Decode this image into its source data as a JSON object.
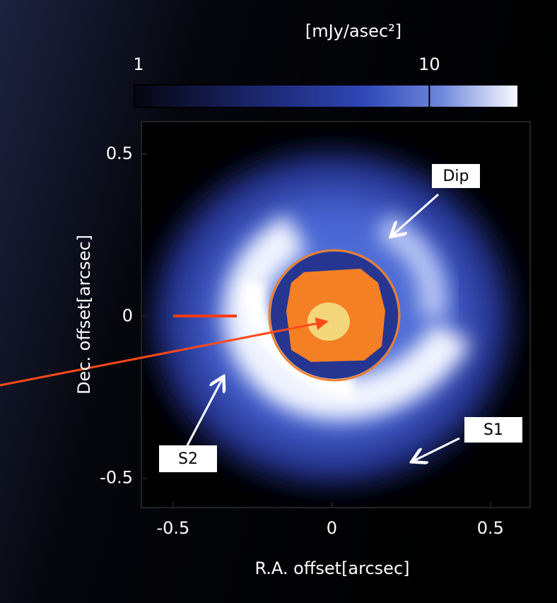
{
  "chart_data": {
    "type": "image",
    "xlabel": "R.A. offset[arcsec]",
    "ylabel": "Dec. offset[arcsec]",
    "xlim": [
      -0.6,
      0.625
    ],
    "ylim": [
      -0.59,
      0.6
    ],
    "xticks": [
      -0.5,
      0,
      0.5
    ],
    "yticks": [
      -0.5,
      0,
      0.5
    ],
    "colorbar": {
      "label": "[mJy/asec²]",
      "lim": [
        1,
        20
      ],
      "log": true,
      "ticks": [
        1,
        10
      ]
    },
    "annotations": [
      "Dip",
      "S1",
      "S2"
    ]
  }
}
